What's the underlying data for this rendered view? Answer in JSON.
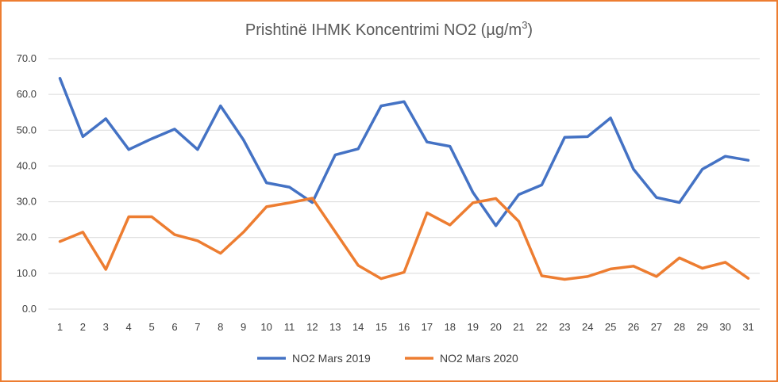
{
  "chart_data": {
    "type": "line",
    "title": "Prishtinë IHMK Koncentrimi NO2 (µg/m",
    "title_sup": "3",
    "title_close": ")",
    "xlabel": "",
    "ylabel": "",
    "x": [
      1,
      2,
      3,
      4,
      5,
      6,
      7,
      8,
      9,
      10,
      11,
      12,
      13,
      14,
      15,
      16,
      17,
      18,
      19,
      20,
      21,
      22,
      23,
      24,
      25,
      26,
      27,
      28,
      29,
      30,
      31
    ],
    "ylim": [
      0,
      70
    ],
    "yticks": [
      "0.0",
      "10.0",
      "20.0",
      "30.0",
      "40.0",
      "50.0",
      "60.0",
      "70.0"
    ],
    "grid": true,
    "legend_position": "bottom",
    "series": [
      {
        "name": "NO2 Mars 2019",
        "color": "#4472C4",
        "values": [
          64.5,
          48.2,
          53.2,
          44.6,
          47.6,
          50.3,
          44.6,
          56.8,
          47.3,
          35.3,
          34.1,
          29.8,
          43.1,
          44.8,
          56.8,
          58.0,
          46.7,
          45.5,
          32.6,
          23.3,
          32.0,
          34.7,
          48.0,
          48.2,
          53.4,
          39.1,
          31.2,
          29.8,
          39.1,
          42.7,
          41.6
        ]
      },
      {
        "name": "NO2 Mars 2020",
        "color": "#ED7D31",
        "values": [
          18.9,
          21.5,
          11.1,
          25.8,
          25.8,
          20.8,
          19.1,
          15.6,
          21.5,
          28.6,
          29.7,
          31.0,
          21.6,
          12.2,
          8.5,
          10.3,
          26.9,
          23.5,
          29.7,
          30.9,
          24.5,
          9.3,
          8.3,
          9.1,
          11.2,
          12.0,
          9.1,
          14.3,
          11.4,
          13.1,
          8.6
        ]
      }
    ]
  }
}
